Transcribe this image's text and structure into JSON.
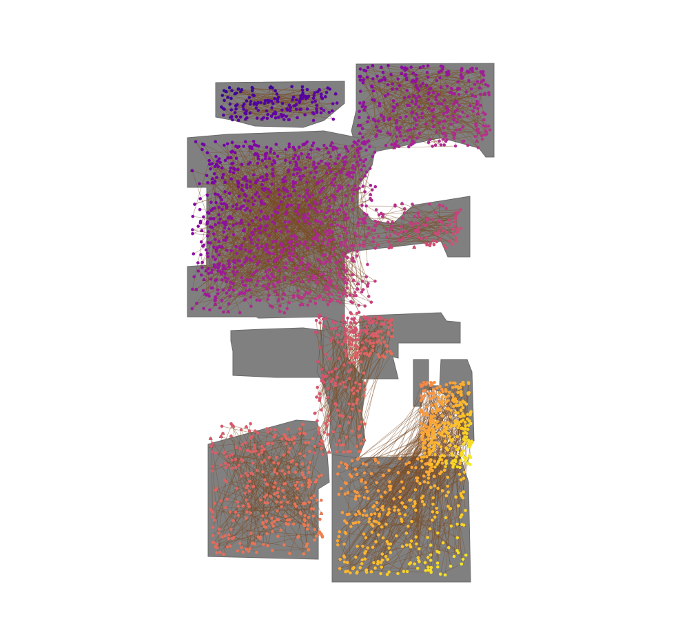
{
  "map": {
    "description_visible_text": "",
    "floorplan_color": "#808080",
    "edge_color": "#7a4a24",
    "arrow_color": "#6b3f1c",
    "colormap": [
      "#1f0c8a",
      "#4b03a1",
      "#7d03a8",
      "#a82296",
      "#cb4679",
      "#e56b5d",
      "#f89441",
      "#fdc328",
      "#f0f921"
    ],
    "regions": [
      {
        "id": "upper-left-wing",
        "color_start": 0.05,
        "color_end": 0.25
      },
      {
        "id": "upper-right-wing",
        "color_start": 0.25,
        "color_end": 0.45
      },
      {
        "id": "central-hall",
        "color_start": 0.2,
        "color_end": 0.5
      },
      {
        "id": "middle-right-room",
        "color_start": 0.4,
        "color_end": 0.55
      },
      {
        "id": "lower-corridor",
        "color_start": 0.5,
        "color_end": 0.65
      },
      {
        "id": "lower-left-room",
        "color_start": 0.55,
        "color_end": 0.7
      },
      {
        "id": "lower-right-room",
        "color_start": 0.7,
        "color_end": 0.98
      }
    ]
  }
}
